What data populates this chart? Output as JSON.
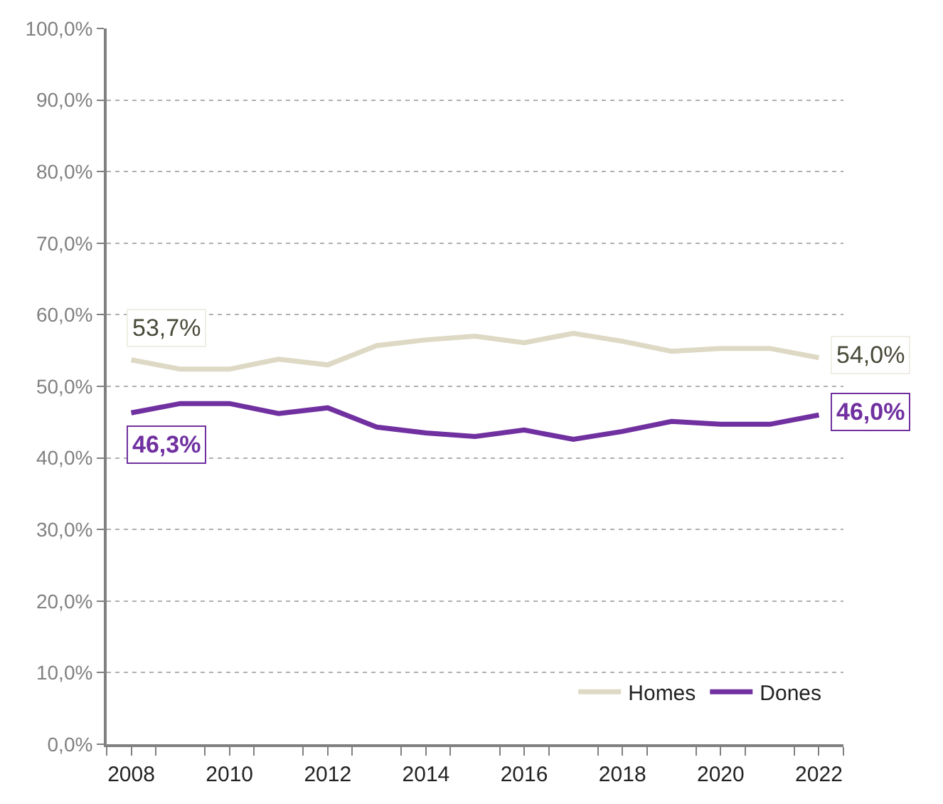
{
  "chart_data": {
    "type": "line",
    "categories": [
      "2008",
      null,
      "2010",
      null,
      "2012",
      null,
      "2014",
      null,
      "2016",
      null,
      "2018",
      null,
      "2020",
      null,
      "2022"
    ],
    "series": [
      {
        "name": "Homes",
        "color": "#ddd9c4",
        "values": [
          53.7,
          52.4,
          52.4,
          53.8,
          53.0,
          55.7,
          56.5,
          57.0,
          56.1,
          57.4,
          56.3,
          54.9,
          55.3,
          55.3,
          54.0
        ],
        "value_labels": [
          "53,7%",
          null,
          null,
          null,
          null,
          null,
          null,
          null,
          null,
          null,
          null,
          null,
          null,
          null,
          "54,0%"
        ]
      },
      {
        "name": "Dones",
        "color": "#7030a0",
        "values": [
          46.3,
          47.6,
          47.6,
          46.2,
          47.0,
          44.3,
          43.5,
          43.0,
          43.9,
          42.6,
          43.7,
          45.1,
          44.7,
          44.7,
          46.0
        ],
        "value_labels": [
          "46,3%",
          null,
          null,
          null,
          null,
          null,
          null,
          null,
          null,
          null,
          null,
          null,
          null,
          null,
          "46,0%"
        ]
      }
    ],
    "ylim": [
      0,
      100
    ],
    "yticks": [
      {
        "value": 0,
        "label": "0,0%"
      },
      {
        "value": 10,
        "label": "10,0%"
      },
      {
        "value": 20,
        "label": "20,0%"
      },
      {
        "value": 30,
        "label": "30,0%"
      },
      {
        "value": 40,
        "label": "40,0%"
      },
      {
        "value": 50,
        "label": "50,0%"
      },
      {
        "value": 60,
        "label": "60,0%"
      },
      {
        "value": 70,
        "label": "70,0%"
      },
      {
        "value": 80,
        "label": "80,0%"
      },
      {
        "value": 90,
        "label": "90,0%"
      },
      {
        "value": 100,
        "label": "100,0%"
      }
    ],
    "grid": "y",
    "legend": "bottom right",
    "marker": "none",
    "line_style": "solid"
  }
}
